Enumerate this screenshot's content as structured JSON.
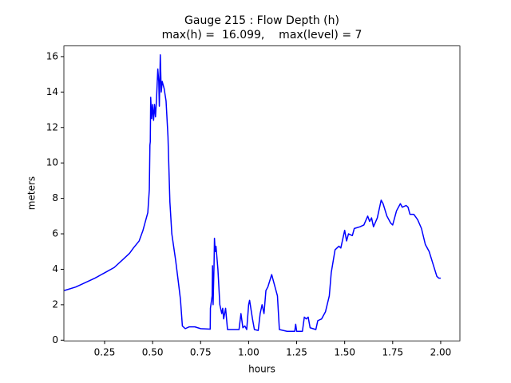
{
  "chart_data": {
    "type": "line",
    "title": [
      "Gauge 215 : Flow Depth (h)",
      "max(h) =  16.099,    max(level) = 7"
    ],
    "xlabel": "hours",
    "ylabel": "meters",
    "x": [
      0.04,
      0.1,
      0.2,
      0.25,
      0.3,
      0.35,
      0.38,
      0.4,
      0.43,
      0.44,
      0.45,
      0.46,
      0.475,
      0.483,
      0.486,
      0.488,
      0.49,
      0.495,
      0.5,
      0.505,
      0.51,
      0.515,
      0.52,
      0.527,
      0.532,
      0.535,
      0.54,
      0.545,
      0.55,
      0.56,
      0.57,
      0.58,
      0.59,
      0.6,
      0.62,
      0.635,
      0.645,
      0.655,
      0.67,
      0.69,
      0.72,
      0.75,
      0.8,
      0.801,
      0.81,
      0.812,
      0.815,
      0.82,
      0.822,
      0.826,
      0.83,
      0.84,
      0.85,
      0.86,
      0.865,
      0.87,
      0.88,
      0.89,
      0.95,
      0.96,
      0.97,
      0.98,
      0.99,
      1.0,
      1.005,
      1.02,
      1.03,
      1.05,
      1.06,
      1.07,
      1.08,
      1.09,
      1.1,
      1.12,
      1.13,
      1.15,
      1.16,
      1.2,
      1.24,
      1.245,
      1.25,
      1.28,
      1.29,
      1.3,
      1.31,
      1.32,
      1.35,
      1.36,
      1.38,
      1.4,
      1.42,
      1.43,
      1.45,
      1.47,
      1.48,
      1.5,
      1.51,
      1.52,
      1.54,
      1.55,
      1.58,
      1.6,
      1.62,
      1.63,
      1.64,
      1.65,
      1.67,
      1.69,
      1.7,
      1.72,
      1.74,
      1.75,
      1.77,
      1.79,
      1.8,
      1.82,
      1.83,
      1.84,
      1.86,
      1.88,
      1.9,
      1.92,
      1.94,
      1.96,
      1.98,
      1.99,
      2.0
    ],
    "series": [
      {
        "color": "#0000ff",
        "values": [
          2.8,
          3.0,
          3.5,
          3.8,
          4.1,
          4.6,
          4.9,
          5.2,
          5.6,
          5.9,
          6.2,
          6.6,
          7.2,
          8.5,
          11,
          11.2,
          13.7,
          12.5,
          13.3,
          12.4,
          13.3,
          12.6,
          13.5,
          15.3,
          14.6,
          13.2,
          16.099,
          14.0,
          14.6,
          14.2,
          13.5,
          11.5,
          7.8,
          6.0,
          4.5,
          3.2,
          2.3,
          0.8,
          0.65,
          0.75,
          0.75,
          0.65,
          0.62,
          1.8,
          2.5,
          4.2,
          2.0,
          4.3,
          5.75,
          5.0,
          5.3,
          4.0,
          2.0,
          1.5,
          1.8,
          1.2,
          1.8,
          0.6,
          0.6,
          1.5,
          0.7,
          0.8,
          0.6,
          2.0,
          2.25,
          1.2,
          0.6,
          0.55,
          1.5,
          2.0,
          1.5,
          2.8,
          3.0,
          3.7,
          3.3,
          2.5,
          0.6,
          0.5,
          0.5,
          0.9,
          0.5,
          0.5,
          1.3,
          1.2,
          1.3,
          0.7,
          0.6,
          1.1,
          1.2,
          1.6,
          2.5,
          3.8,
          5.1,
          5.3,
          5.2,
          6.2,
          5.6,
          6.0,
          5.9,
          6.3,
          6.4,
          6.5,
          7.0,
          6.7,
          6.9,
          6.4,
          6.9,
          7.9,
          7.7,
          7.0,
          6.6,
          6.5,
          7.3,
          7.7,
          7.5,
          7.6,
          7.5,
          7.1,
          7.1,
          6.8,
          6.3,
          5.4,
          5.0,
          4.3,
          3.6,
          3.5,
          3.5
        ]
      }
    ],
    "xlim": [
      0.038,
      2.1
    ],
    "ylim": [
      -0.04,
      16.6
    ],
    "xticks": [
      {
        "value": 0.25,
        "label": "0.25"
      },
      {
        "value": 0.5,
        "label": "0.50"
      },
      {
        "value": 0.75,
        "label": "0.75"
      },
      {
        "value": 1,
        "label": "1.00"
      },
      {
        "value": 1.25,
        "label": "1.25"
      },
      {
        "value": 1.5,
        "label": "1.50"
      },
      {
        "value": 1.75,
        "label": "1.75"
      },
      {
        "value": 2,
        "label": "2.00"
      }
    ],
    "yticks": [
      0,
      2,
      4,
      6,
      8,
      10,
      12,
      14,
      16
    ]
  }
}
